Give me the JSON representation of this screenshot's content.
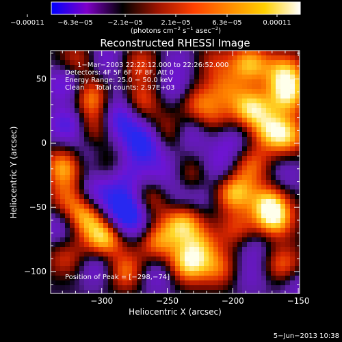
{
  "chart_data": {
    "type": "heatmap",
    "title": "Reconstructed RHESSI Image",
    "xlabel": "Heliocentric X (arcsec)",
    "ylabel": "Heliocentric Y (arcsec)",
    "xlim": [
      -339,
      -149
    ],
    "ylim": [
      -117,
      72
    ],
    "x_ticks": [
      -300,
      -250,
      -200,
      -150
    ],
    "x_tick_labels": [
      "−300",
      "−250",
      "−200",
      "−150"
    ],
    "y_ticks": [
      -100,
      -50,
      0,
      50
    ],
    "y_tick_labels": [
      "−100",
      "−50",
      "0",
      "50"
    ],
    "colorbar": {
      "range": [
        -0.00011,
        0.00011
      ],
      "tick_labels": [
        "−0.00011",
        "−6.3e−05",
        "−2.1e−05",
        "2.1e−05",
        "6.3e−05",
        "0.00011"
      ],
      "colors": [
        "#0000ff",
        "#7f00c8",
        "#000000",
        "#a01400",
        "#ff4000",
        "#ff8a00",
        "#ffd000",
        "#ffffff"
      ]
    },
    "units_parts": [
      "(photons cm",
      "−2",
      " s",
      "−1",
      " asec",
      "−2",
      ")"
    ],
    "annotations": [
      "1−Mar−2003 22:22:12.000  to  22:26:52.000",
      "Detectors: 4F 5F 6F 7F 8F, Att 0",
      "Energy Range: 25.0 − 50.0 keV",
      "Clean     Total counts: 2.97E+03"
    ],
    "peak_label": "Position of Peak = [−298,−74]",
    "peak": [
      -298,
      -74
    ],
    "blobs": [
      {
        "x": -318,
        "y": 64,
        "v": 0.55
      },
      {
        "x": -298,
        "y": 66,
        "v": -0.45
      },
      {
        "x": -270,
        "y": 61,
        "v": 0.55
      },
      {
        "x": -242,
        "y": 64,
        "v": -0.3
      },
      {
        "x": -215,
        "y": 63,
        "v": 0.4
      },
      {
        "x": -187,
        "y": 62,
        "v": 0.85
      },
      {
        "x": -160,
        "y": 55,
        "v": 0.85
      },
      {
        "x": -158,
        "y": 37,
        "v": 0.9
      },
      {
        "x": -327,
        "y": 46,
        "v": -0.6
      },
      {
        "x": -307,
        "y": 36,
        "v": 0.85
      },
      {
        "x": -290,
        "y": 38,
        "v": -0.35
      },
      {
        "x": -270,
        "y": 33,
        "v": 0.65
      },
      {
        "x": -244,
        "y": 42,
        "v": -0.45
      },
      {
        "x": -228,
        "y": 32,
        "v": 0.6
      },
      {
        "x": -205,
        "y": 42,
        "v": 0.5
      },
      {
        "x": -186,
        "y": 27,
        "v": 0.95
      },
      {
        "x": -325,
        "y": 14,
        "v": -0.7
      },
      {
        "x": -306,
        "y": 13,
        "v": 0.6
      },
      {
        "x": -286,
        "y": 18,
        "v": -0.8
      },
      {
        "x": -268,
        "y": 0,
        "v": -0.95
      },
      {
        "x": -250,
        "y": 8,
        "v": 0.55
      },
      {
        "x": -232,
        "y": 8,
        "v": -0.5
      },
      {
        "x": -215,
        "y": 18,
        "v": 0.45
      },
      {
        "x": -200,
        "y": 2,
        "v": -0.45
      },
      {
        "x": -172,
        "y": 10,
        "v": 0.7
      },
      {
        "x": -158,
        "y": 5,
        "v": 0.75
      },
      {
        "x": -328,
        "y": -18,
        "v": 0.9
      },
      {
        "x": -312,
        "y": -12,
        "v": -0.4
      },
      {
        "x": -295,
        "y": -18,
        "v": 0.45
      },
      {
        "x": -282,
        "y": -25,
        "v": -0.55
      },
      {
        "x": -252,
        "y": -22,
        "v": -0.45
      },
      {
        "x": -232,
        "y": -25,
        "v": 0.5
      },
      {
        "x": -210,
        "y": -20,
        "v": -0.5
      },
      {
        "x": -186,
        "y": -17,
        "v": 0.65
      },
      {
        "x": -160,
        "y": -25,
        "v": -0.35
      },
      {
        "x": -326,
        "y": -42,
        "v": 0.55
      },
      {
        "x": -305,
        "y": -38,
        "v": -0.6
      },
      {
        "x": -284,
        "y": -50,
        "v": -0.9
      },
      {
        "x": -262,
        "y": -43,
        "v": 0.55
      },
      {
        "x": -243,
        "y": -42,
        "v": -0.35
      },
      {
        "x": -222,
        "y": -42,
        "v": -0.3
      },
      {
        "x": -200,
        "y": -38,
        "v": 0.95
      },
      {
        "x": -172,
        "y": -46,
        "v": 0.8
      },
      {
        "x": -332,
        "y": -65,
        "v": -0.45
      },
      {
        "x": -313,
        "y": -57,
        "v": 0.85
      },
      {
        "x": -298,
        "y": -74,
        "v": 1.0
      },
      {
        "x": -276,
        "y": -63,
        "v": -0.6
      },
      {
        "x": -258,
        "y": -76,
        "v": 0.75
      },
      {
        "x": -238,
        "y": -62,
        "v": 0.9
      },
      {
        "x": -225,
        "y": -80,
        "v": 0.6
      },
      {
        "x": -196,
        "y": -68,
        "v": 0.55
      },
      {
        "x": -184,
        "y": -80,
        "v": -0.4
      },
      {
        "x": -168,
        "y": -60,
        "v": 0.85
      },
      {
        "x": -327,
        "y": -90,
        "v": 0.5
      },
      {
        "x": -303,
        "y": -97,
        "v": -0.5
      },
      {
        "x": -282,
        "y": -100,
        "v": 0.75
      },
      {
        "x": -258,
        "y": -103,
        "v": -0.45
      },
      {
        "x": -235,
        "y": -95,
        "v": 0.9
      },
      {
        "x": -210,
        "y": -98,
        "v": 0.6
      },
      {
        "x": -186,
        "y": -103,
        "v": -0.35
      },
      {
        "x": -162,
        "y": -95,
        "v": 0.7
      },
      {
        "x": -150,
        "y": -110,
        "v": -0.4
      }
    ]
  },
  "footer": {
    "date": "5−Jun−2013 10:38"
  }
}
